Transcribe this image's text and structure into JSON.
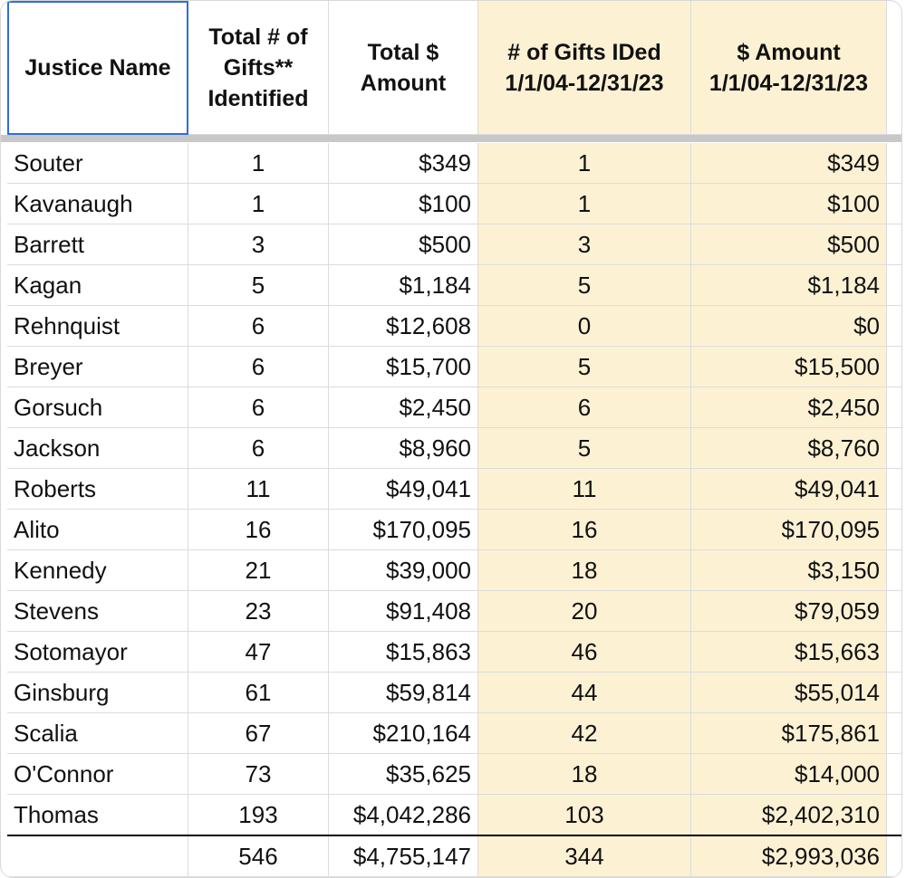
{
  "table": {
    "header": [
      "Justice Name",
      "Total # of\nGifts**\nIdentified",
      "Total $\nAmount",
      "# of Gifts IDed\n1/1/04-12/31/23",
      "$ Amount\n1/1/04-12/31/23"
    ],
    "rows": [
      [
        "Souter",
        "1",
        "$349",
        "1",
        "$349"
      ],
      [
        "Kavanaugh",
        "1",
        "$100",
        "1",
        "$100"
      ],
      [
        "Barrett",
        "3",
        "$500",
        "3",
        "$500"
      ],
      [
        "Kagan",
        "5",
        "$1,184",
        "5",
        "$1,184"
      ],
      [
        "Rehnquist",
        "6",
        "$12,608",
        "0",
        "$0"
      ],
      [
        "Breyer",
        "6",
        "$15,700",
        "5",
        "$15,500"
      ],
      [
        "Gorsuch",
        "6",
        "$2,450",
        "6",
        "$2,450"
      ],
      [
        "Jackson",
        "6",
        "$8,960",
        "5",
        "$8,760"
      ],
      [
        "Roberts",
        "11",
        "$49,041",
        "11",
        "$49,041"
      ],
      [
        "Alito",
        "16",
        "$170,095",
        "16",
        "$170,095"
      ],
      [
        "Kennedy",
        "21",
        "$39,000",
        "18",
        "$3,150"
      ],
      [
        "Stevens",
        "23",
        "$91,408",
        "20",
        "$79,059"
      ],
      [
        "Sotomayor",
        "47",
        "$15,863",
        "46",
        "$15,663"
      ],
      [
        "Ginsburg",
        "61",
        "$59,814",
        "44",
        "$55,014"
      ],
      [
        "Scalia",
        "67",
        "$210,164",
        "42",
        "$175,861"
      ],
      [
        "O'Connor",
        "73",
        "$35,625",
        "18",
        "$14,000"
      ],
      [
        "Thomas",
        "193",
        "$4,042,286",
        "103",
        "$2,402,310"
      ]
    ],
    "totals": [
      "546",
      "$4,755,147",
      "344",
      "$2,993,036"
    ]
  }
}
